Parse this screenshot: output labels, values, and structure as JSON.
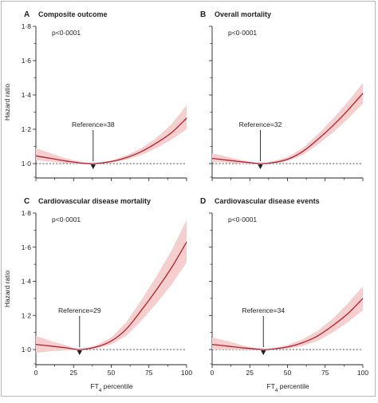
{
  "figure": {
    "y_axis_label": "Hazard ratio",
    "x_axis_label_main": "FT",
    "x_axis_label_sub": "4",
    "x_axis_label_tail": " percentile",
    "colors": {
      "line": "#b51f2e",
      "band": "#f4cfcd",
      "reference": "#231f20",
      "axis": "#231f20"
    }
  },
  "chart_data": [
    {
      "type": "line",
      "panel_letter": "A",
      "title": "Composite outcome",
      "p_value": "p<0·0001",
      "reference_label": "Reference=38",
      "reference_x": 38,
      "reference_y": 1.0,
      "xlim": [
        0,
        100
      ],
      "ylim": [
        0.92,
        1.8
      ],
      "x_ticks": [
        0,
        25,
        50,
        75,
        100
      ],
      "y_ticks": [
        1.0,
        1.2,
        1.4,
        1.6,
        1.8
      ],
      "y_tick_labels": [
        "1·0",
        "1·2",
        "1·4",
        "1·6",
        "1·8"
      ],
      "series": [
        {
          "x": [
            0,
            10,
            20,
            30,
            38,
            50,
            60,
            70,
            80,
            90,
            100
          ],
          "y": [
            1.045,
            1.03,
            1.015,
            1.003,
            1.0,
            1.012,
            1.035,
            1.07,
            1.12,
            1.18,
            1.265
          ],
          "lower": [
            1.02,
            1.01,
            1.003,
            0.998,
            1.0,
            1.006,
            1.022,
            1.05,
            1.09,
            1.14,
            1.2
          ],
          "upper": [
            1.09,
            1.06,
            1.03,
            1.01,
            1.0,
            1.018,
            1.048,
            1.09,
            1.15,
            1.23,
            1.34
          ]
        }
      ],
      "show_x_tick_labels": false,
      "show_y_tick_labels": true
    },
    {
      "type": "line",
      "panel_letter": "B",
      "title": "Overall mortality",
      "p_value": "p<0·0001",
      "reference_label": "Reference=32",
      "reference_x": 32,
      "reference_y": 1.0,
      "xlim": [
        0,
        100
      ],
      "ylim": [
        0.92,
        1.8
      ],
      "x_ticks": [
        0,
        25,
        50,
        75,
        100
      ],
      "y_ticks": [
        1.0,
        1.2,
        1.4,
        1.6,
        1.8
      ],
      "y_tick_labels": [
        "1·0",
        "1·2",
        "1·4",
        "1·6",
        "1·8"
      ],
      "series": [
        {
          "x": [
            0,
            10,
            20,
            32,
            40,
            50,
            60,
            70,
            80,
            90,
            100
          ],
          "y": [
            1.03,
            1.02,
            1.01,
            1.0,
            1.005,
            1.025,
            1.07,
            1.14,
            1.22,
            1.31,
            1.41
          ],
          "lower": [
            1.01,
            1.005,
            1.0,
            1.0,
            1.0,
            1.015,
            1.05,
            1.11,
            1.18,
            1.26,
            1.35
          ],
          "upper": [
            1.06,
            1.04,
            1.02,
            1.0,
            1.012,
            1.038,
            1.09,
            1.17,
            1.26,
            1.36,
            1.47
          ]
        }
      ],
      "show_x_tick_labels": false,
      "show_y_tick_labels": false
    },
    {
      "type": "line",
      "panel_letter": "C",
      "title": "Cardiovascular disease mortality",
      "p_value": "p<0·0001",
      "reference_label": "Reference=29",
      "reference_x": 29,
      "reference_y": 1.0,
      "xlim": [
        0,
        100
      ],
      "ylim": [
        0.92,
        1.8
      ],
      "x_ticks": [
        0,
        25,
        50,
        75,
        100
      ],
      "y_ticks": [
        1.0,
        1.2,
        1.4,
        1.6,
        1.8
      ],
      "y_tick_labels": [
        "1·0",
        "1·2",
        "1·4",
        "1·6",
        "1·8"
      ],
      "series": [
        {
          "x": [
            0,
            10,
            20,
            29,
            40,
            50,
            60,
            70,
            80,
            90,
            100
          ],
          "y": [
            1.03,
            1.02,
            1.01,
            1.0,
            1.015,
            1.05,
            1.12,
            1.23,
            1.35,
            1.48,
            1.63
          ],
          "lower": [
            0.98,
            0.99,
            0.995,
            1.0,
            1.005,
            1.03,
            1.08,
            1.17,
            1.27,
            1.38,
            1.51
          ],
          "upper": [
            1.08,
            1.05,
            1.025,
            1.0,
            1.025,
            1.07,
            1.16,
            1.29,
            1.43,
            1.58,
            1.76
          ]
        }
      ],
      "show_x_tick_labels": true,
      "show_y_tick_labels": true
    },
    {
      "type": "line",
      "panel_letter": "D",
      "title": "Cardiovascular disease events",
      "p_value": "p<0·0001",
      "reference_label": "Reference=34",
      "reference_x": 34,
      "reference_y": 1.0,
      "xlim": [
        0,
        100
      ],
      "ylim": [
        0.92,
        1.8
      ],
      "x_ticks": [
        0,
        25,
        50,
        75,
        100
      ],
      "y_ticks": [
        1.0,
        1.2,
        1.4,
        1.6,
        1.8
      ],
      "y_tick_labels": [
        "1·0",
        "1·2",
        "1·4",
        "1·6",
        "1·8"
      ],
      "series": [
        {
          "x": [
            0,
            10,
            20,
            34,
            40,
            50,
            60,
            70,
            80,
            90,
            100
          ],
          "y": [
            1.03,
            1.02,
            1.01,
            1.0,
            1.003,
            1.015,
            1.04,
            1.08,
            1.14,
            1.21,
            1.3
          ],
          "lower": [
            1.0,
            1.0,
            1.0,
            1.0,
            1.0,
            1.005,
            1.02,
            1.05,
            1.1,
            1.16,
            1.23
          ],
          "upper": [
            1.07,
            1.05,
            1.025,
            1.0,
            1.007,
            1.026,
            1.06,
            1.11,
            1.18,
            1.27,
            1.37
          ]
        }
      ],
      "show_x_tick_labels": true,
      "show_y_tick_labels": false
    }
  ]
}
